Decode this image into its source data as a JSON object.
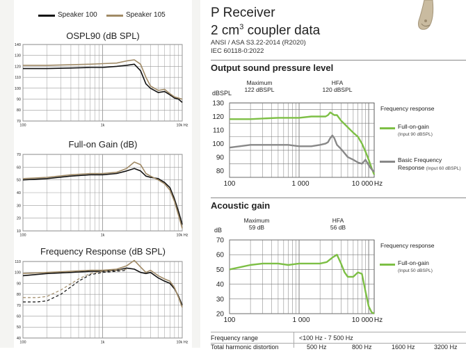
{
  "colors": {
    "speaker100": "#111111",
    "speaker105": "#a08a66",
    "green": "#7dbf45",
    "gray": "#888888",
    "grid": "#999999"
  },
  "left": {
    "legend": [
      "Speaker 100",
      "Speaker 105"
    ],
    "charts": [
      {
        "title": "OSPL90 (dB SPL)",
        "yticks": [
          "140",
          "130",
          "120",
          "110",
          "100",
          "90",
          "80",
          "70"
        ],
        "xticks": [
          "100",
          "1k",
          "10k Hz"
        ]
      },
      {
        "title": "Full-on Gain (dB)",
        "yticks": [
          "70",
          "60",
          "50",
          "40",
          "30",
          "20",
          "10"
        ],
        "xticks": [
          "100",
          "1k",
          "10k Hz"
        ]
      },
      {
        "title": "Frequency Response (dB SPL)",
        "yticks": [
          "110",
          "100",
          "90",
          "80",
          "70",
          "60",
          "50",
          "40"
        ],
        "xticks": [
          "100",
          "1k",
          "10k Hz"
        ]
      }
    ]
  },
  "right": {
    "title_line1": "P Receiver",
    "title_line2_prefix": "2 cm",
    "title_line2_sup": "3",
    "title_line2_suffix": " coupler data",
    "standard1": "ANSI / ASA S3.22-2014 (R2020)",
    "standard2": "IEC 60118-0:2022",
    "ospl": {
      "section": "Output sound pressure level",
      "max_label": "Maximum",
      "max_value": "122 dBSPL",
      "hfa_label": "HFA",
      "hfa_value": "120 dBSPL",
      "yunit": "dBSPL",
      "yticks": [
        "130",
        "120",
        "110",
        "100",
        "90",
        "80"
      ],
      "xticks": [
        "100",
        "1 000",
        "10 000",
        "Hz"
      ],
      "fr_title": "Frequency response",
      "legend": [
        {
          "label": "Full-on-gain",
          "sub": "(Input 90 dBSPL)"
        },
        {
          "label": "Basic Frequency Response",
          "sub": "(Input 60 dBSPL)"
        }
      ]
    },
    "gain": {
      "section": "Acoustic gain",
      "max_label": "Maximum",
      "max_value": "59 dB",
      "hfa_label": "HFA",
      "hfa_value": "56 dB",
      "yunit": "dB",
      "yticks": [
        "70",
        "60",
        "50",
        "40",
        "30",
        "20"
      ],
      "xticks": [
        "100",
        "1 000",
        "10 000",
        "Hz"
      ],
      "fr_title": "Frequency response",
      "legend": [
        {
          "label": "Full-on-gain",
          "sub": "(Input 50 dBSPL)"
        }
      ]
    },
    "table": {
      "row1_label": "Frequency range",
      "row1_value": "<100 Hz - 7 500 Hz",
      "row2_label": "Total harmonic distortion",
      "row2_values": [
        "500 Hz",
        "800 Hz",
        "1600 Hz",
        "3200 Hz"
      ]
    }
  },
  "chart_data": [
    {
      "type": "line",
      "title": "OSPL90 (dB SPL)",
      "xscale": "log",
      "xlim": [
        100,
        10000
      ],
      "ylim": [
        70,
        140
      ],
      "series": [
        {
          "name": "Speaker 100",
          "x": [
            100,
            200,
            400,
            700,
            1000,
            1500,
            2000,
            2500,
            3000,
            3500,
            4000,
            5000,
            6000,
            7000,
            8000,
            9000,
            10000
          ],
          "values": [
            118,
            118,
            118.5,
            119,
            119,
            120,
            121,
            122,
            116,
            104,
            100,
            96,
            97,
            94,
            91,
            90,
            87
          ]
        },
        {
          "name": "Speaker 105",
          "x": [
            100,
            200,
            400,
            700,
            1000,
            1500,
            2000,
            2500,
            3000,
            3500,
            4000,
            5000,
            6000,
            7000,
            8000,
            9000,
            10000
          ],
          "values": [
            121,
            121,
            121.5,
            122,
            122.5,
            123,
            125,
            126,
            122,
            110,
            102,
            98,
            99,
            95,
            92,
            91,
            90
          ]
        }
      ]
    },
    {
      "type": "line",
      "title": "Full-on Gain (dB)",
      "xscale": "log",
      "xlim": [
        100,
        10000
      ],
      "ylim": [
        10,
        70
      ],
      "series": [
        {
          "name": "Speaker 100",
          "x": [
            100,
            200,
            400,
            700,
            1000,
            1500,
            2000,
            2500,
            3000,
            3500,
            4000,
            5000,
            6000,
            7000,
            8000,
            9000,
            10000
          ],
          "values": [
            50,
            51,
            53,
            54,
            54,
            55,
            57,
            59,
            57,
            53,
            52,
            51,
            48,
            44,
            35,
            25,
            15
          ]
        },
        {
          "name": "Speaker 105",
          "x": [
            100,
            200,
            400,
            700,
            1000,
            1500,
            2000,
            2500,
            3000,
            3500,
            4000,
            5000,
            6000,
            7000,
            8000,
            9000,
            10000
          ],
          "values": [
            51,
            52,
            54,
            55,
            55,
            56,
            59,
            64,
            62,
            55,
            53,
            50,
            47,
            42,
            33,
            22,
            12
          ]
        }
      ]
    },
    {
      "type": "line",
      "title": "Frequency Response (dB SPL)",
      "xscale": "log",
      "xlim": [
        100,
        10000
      ],
      "ylim": [
        40,
        110
      ],
      "series": [
        {
          "name": "Speaker 100",
          "x": [
            100,
            200,
            400,
            700,
            1000,
            1500,
            2000,
            2500,
            3000,
            3500,
            4000,
            5000,
            6000,
            7000,
            8000,
            9000,
            10000
          ],
          "values": [
            97,
            99,
            100,
            101,
            101,
            102,
            104,
            103,
            100,
            99,
            100,
            95,
            92,
            90,
            85,
            78,
            70
          ]
        },
        {
          "name": "Speaker 105",
          "x": [
            100,
            200,
            400,
            700,
            1000,
            1500,
            2000,
            2500,
            3000,
            3500,
            4000,
            5000,
            6000,
            7000,
            8000,
            9000,
            10000
          ],
          "values": [
            99,
            100,
            101,
            102,
            102,
            103,
            106,
            111,
            105,
            100,
            102,
            97,
            94,
            92,
            86,
            77,
            68
          ]
        },
        {
          "name": "Speaker 100 (basic)",
          "dashed": true,
          "x": [
            100,
            150,
            200,
            300,
            500,
            700,
            1000,
            1500,
            2000
          ],
          "values": [
            73,
            73,
            74,
            80,
            92,
            98,
            100,
            101,
            102
          ]
        },
        {
          "name": "Speaker 105 (basic)",
          "dashed": true,
          "x": [
            100,
            150,
            200,
            300,
            500,
            700,
            1000,
            1500,
            2000
          ],
          "values": [
            77,
            77,
            78,
            84,
            94,
            99,
            101,
            102,
            103
          ]
        }
      ]
    },
    {
      "type": "line",
      "title": "Output sound pressure level",
      "xscale": "log",
      "xlim": [
        100,
        12000
      ],
      "ylim": [
        75,
        130
      ],
      "ylabel": "dBSPL",
      "series": [
        {
          "name": "Full-on-gain",
          "x": [
            100,
            200,
            300,
            500,
            700,
            1000,
            1500,
            2000,
            2400,
            2600,
            2800,
            3000,
            3200,
            3500,
            4000,
            5000,
            6000,
            7000,
            8000,
            9000,
            10000,
            11000,
            12000
          ],
          "values": [
            118,
            118,
            118.5,
            119,
            119,
            119,
            120,
            120,
            120,
            121,
            123,
            122,
            121,
            121,
            117,
            112,
            108,
            105,
            100,
            94,
            88,
            82,
            77
          ]
        },
        {
          "name": "Basic Frequency Response",
          "x": [
            100,
            200,
            300,
            500,
            700,
            1000,
            1500,
            2000,
            2400,
            2600,
            2800,
            3000,
            3200,
            3500,
            4000,
            5000,
            6000,
            7000,
            8000,
            9000,
            10000,
            11000,
            12000
          ],
          "values": [
            97,
            99,
            99,
            99,
            99,
            98,
            98,
            99,
            100,
            101,
            104,
            106,
            104,
            99,
            96,
            90,
            88,
            86,
            85,
            88,
            84,
            81,
            79
          ]
        }
      ]
    },
    {
      "type": "line",
      "title": "Acoustic gain",
      "xscale": "log",
      "xlim": [
        100,
        12000
      ],
      "ylim": [
        20,
        70
      ],
      "ylabel": "dB",
      "series": [
        {
          "name": "Full-on-gain",
          "x": [
            100,
            200,
            300,
            500,
            700,
            1000,
            1500,
            2000,
            2500,
            3000,
            3500,
            4000,
            4500,
            5000,
            6000,
            7000,
            8000,
            9000,
            10000,
            11000,
            12000
          ],
          "values": [
            50,
            53,
            54,
            54,
            53,
            54,
            54,
            54,
            55,
            58,
            60,
            54,
            48,
            45,
            45,
            48,
            47,
            35,
            25,
            21,
            20
          ]
        }
      ]
    }
  ]
}
